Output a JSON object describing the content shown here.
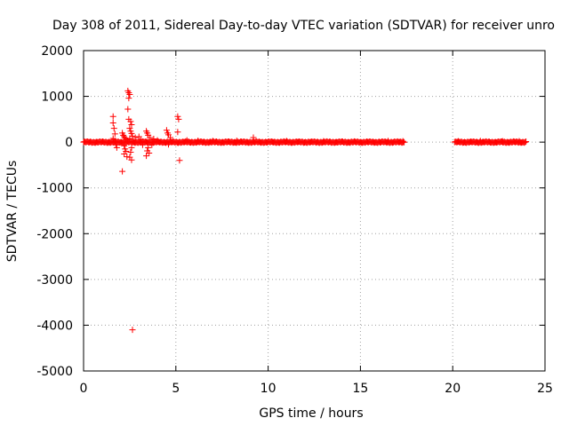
{
  "chart_data": {
    "type": "scatter",
    "title": "Day 308 of 2011, Sidereal Day-to-day VTEC variation (SDTVAR) for receiver unro",
    "xlabel": "GPS time / hours",
    "ylabel": "SDTVAR / TECUs",
    "xlim": [
      0,
      25
    ],
    "ylim": [
      -5000,
      2000
    ],
    "xticks": [
      0,
      5,
      10,
      15,
      20,
      25
    ],
    "yticks": [
      -5000,
      -4000,
      -3000,
      -2000,
      -1000,
      0,
      1000,
      2000
    ],
    "grid": true,
    "legend": "none",
    "marker": "plus",
    "color": "#ff0000",
    "dense_segments": [
      {
        "x_start": 0.0,
        "x_end": 17.4,
        "y_min": -15,
        "y_max": 15
      },
      {
        "x_start": 20.1,
        "x_end": 24.0,
        "y_min": -15,
        "y_max": 15
      }
    ],
    "points": [
      [
        1.6,
        560
      ],
      [
        1.6,
        420
      ],
      [
        1.65,
        300
      ],
      [
        1.7,
        180
      ],
      [
        1.6,
        80
      ],
      [
        1.75,
        -60
      ],
      [
        1.8,
        -120
      ],
      [
        2.1,
        200
      ],
      [
        2.15,
        150
      ],
      [
        2.2,
        120
      ],
      [
        2.25,
        90
      ],
      [
        2.3,
        60
      ],
      [
        2.2,
        -80
      ],
      [
        2.25,
        -150
      ],
      [
        2.3,
        -200
      ],
      [
        2.2,
        -260
      ],
      [
        2.35,
        -320
      ],
      [
        2.1,
        -640
      ],
      [
        2.4,
        1120
      ],
      [
        2.45,
        1080
      ],
      [
        2.5,
        1040
      ],
      [
        2.45,
        960
      ],
      [
        2.4,
        720
      ],
      [
        2.45,
        500
      ],
      [
        2.55,
        450
      ],
      [
        2.6,
        380
      ],
      [
        2.5,
        300
      ],
      [
        2.55,
        240
      ],
      [
        2.6,
        190
      ],
      [
        2.65,
        130
      ],
      [
        2.5,
        80
      ],
      [
        2.6,
        -120
      ],
      [
        2.55,
        -220
      ],
      [
        2.5,
        -330
      ],
      [
        2.6,
        -390
      ],
      [
        2.65,
        -4100
      ],
      [
        2.8,
        100
      ],
      [
        3.0,
        120
      ],
      [
        3.1,
        60
      ],
      [
        3.2,
        -60
      ],
      [
        3.4,
        240
      ],
      [
        3.45,
        200
      ],
      [
        3.5,
        150
      ],
      [
        3.6,
        100
      ],
      [
        3.5,
        -120
      ],
      [
        3.45,
        -190
      ],
      [
        3.55,
        -240
      ],
      [
        3.4,
        -300
      ],
      [
        3.7,
        -60
      ],
      [
        3.8,
        70
      ],
      [
        4.0,
        40
      ],
      [
        4.5,
        260
      ],
      [
        4.55,
        200
      ],
      [
        4.6,
        160
      ],
      [
        4.7,
        100
      ],
      [
        4.6,
        -50
      ],
      [
        5.1,
        560
      ],
      [
        5.15,
        500
      ],
      [
        5.1,
        220
      ],
      [
        5.2,
        -400
      ],
      [
        9.2,
        100
      ],
      [
        5.6,
        40
      ],
      [
        6.2,
        30
      ],
      [
        7.0,
        25
      ],
      [
        8.3,
        30
      ],
      [
        11.0,
        25
      ],
      [
        13.0,
        20
      ],
      [
        16.5,
        25
      ],
      [
        17.3,
        20
      ],
      [
        20.3,
        20
      ],
      [
        21.5,
        25
      ],
      [
        22.7,
        20
      ],
      [
        23.6,
        20
      ]
    ]
  }
}
